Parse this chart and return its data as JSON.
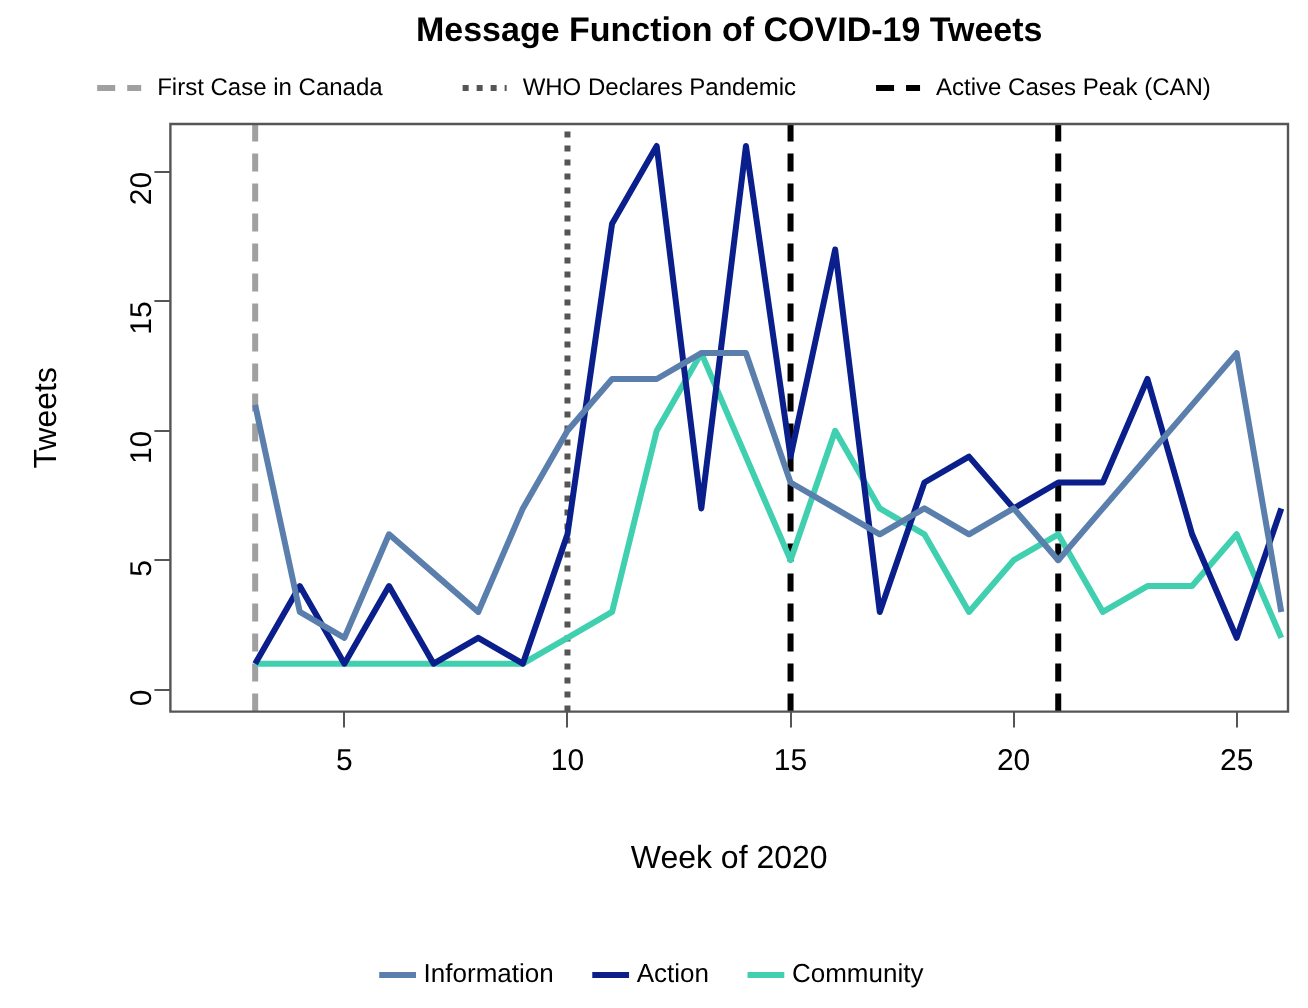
{
  "chart_data": {
    "type": "line",
    "title": "Message Function of COVID-19 Tweets",
    "xlabel": "Week of 2020",
    "ylabel": "Tweets",
    "x": [
      3,
      4,
      5,
      6,
      7,
      8,
      9,
      10,
      11,
      12,
      13,
      14,
      15,
      16,
      17,
      18,
      19,
      20,
      21,
      22,
      23,
      24,
      25,
      26
    ],
    "series": [
      {
        "name": "Information",
        "color": "#5b7fad",
        "values": [
          11,
          3,
          2,
          6,
          4.5,
          3,
          7,
          10,
          12,
          12,
          13,
          13,
          8,
          7,
          6,
          7,
          6,
          7,
          5,
          7,
          9,
          11,
          13,
          3
        ]
      },
      {
        "name": "Action",
        "color": "#0a1f8c",
        "values": [
          1,
          4,
          1,
          4,
          1,
          2,
          1,
          6,
          18,
          21,
          7,
          21,
          9,
          17,
          3,
          8,
          9,
          7,
          8,
          8,
          12,
          6,
          2,
          7
        ]
      },
      {
        "name": "Community",
        "color": "#40d0b0",
        "values": [
          1,
          1,
          1,
          1,
          1,
          1,
          1,
          2,
          3,
          10,
          13,
          9,
          5,
          10,
          7,
          6,
          3,
          5,
          6,
          3,
          4,
          4,
          6,
          2
        ]
      }
    ],
    "xlim": [
      1.1,
      26.15
    ],
    "xticks": [
      5,
      10,
      15,
      20,
      25
    ],
    "ylim": [
      -0.85,
      21.85
    ],
    "yticks": [
      0,
      5,
      10,
      15,
      20
    ],
    "ref_lines": [
      {
        "axis": "x",
        "value": 3,
        "label": "First Case in Canada",
        "color": "#a0a0a0",
        "line_style": "dashed"
      },
      {
        "axis": "x",
        "value": 10,
        "label": "WHO Declares Pandemic",
        "color": "#555555",
        "line_style": "dotted"
      },
      {
        "axis": "x",
        "value": 15,
        "label": "Active Cases Peak (CAN)",
        "color": "#000000",
        "line_style": "dashed"
      },
      {
        "axis": "x",
        "value": 21,
        "label": null,
        "color": "#000000",
        "line_style": "dashed"
      }
    ],
    "grid": false,
    "legend": "bottom",
    "marker": "none",
    "line_style": "solid"
  }
}
